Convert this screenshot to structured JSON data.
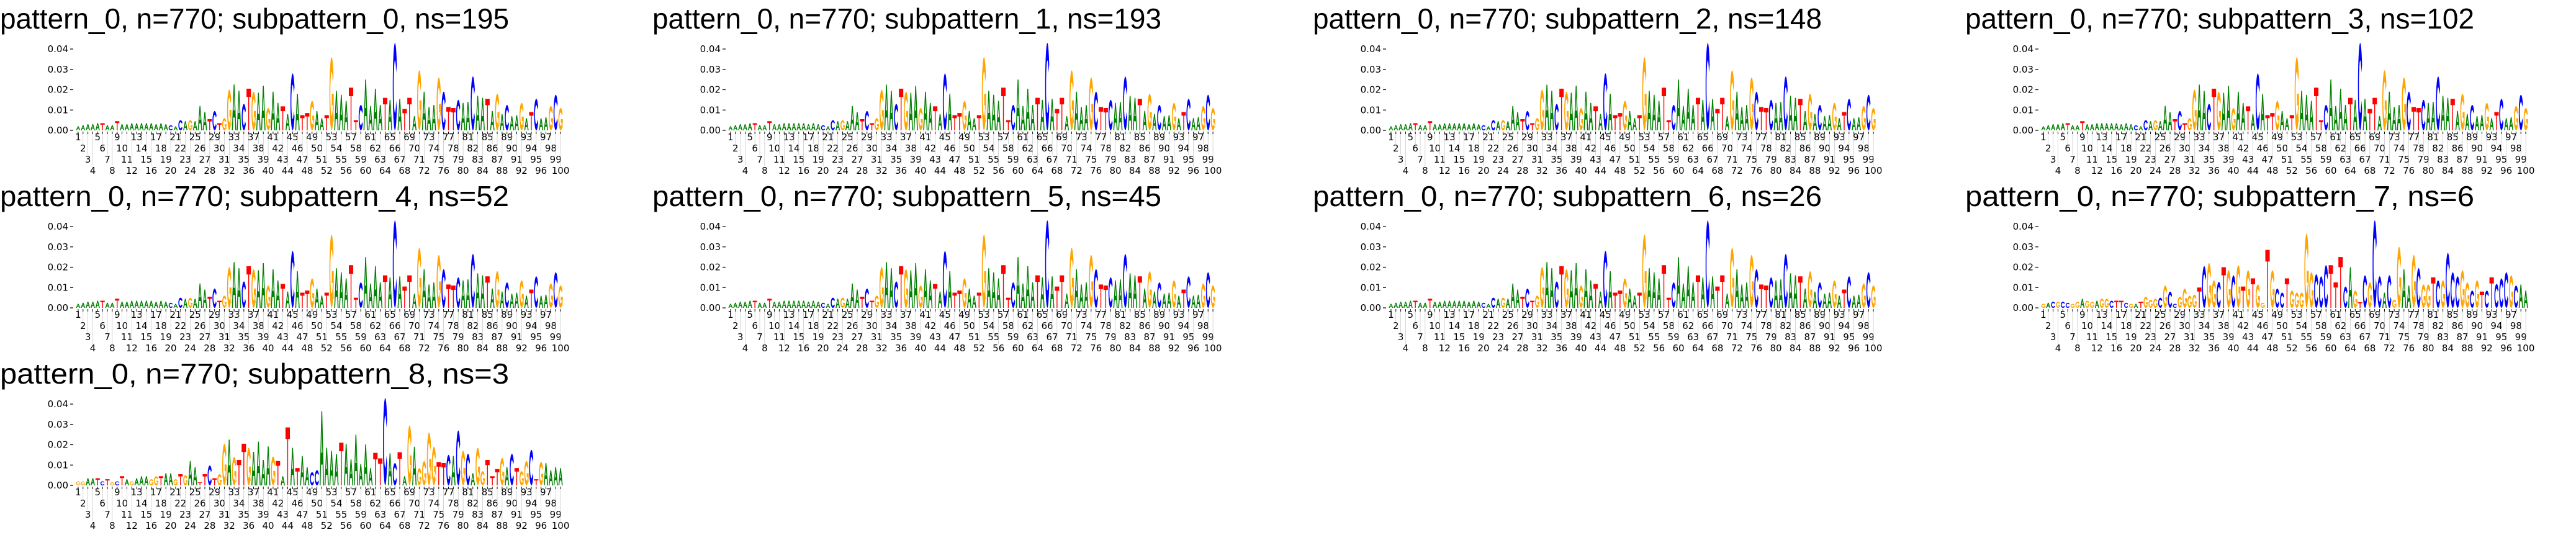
{
  "colors": {
    "A": "#008000",
    "C": "#0000ff",
    "G": "#ffa500",
    "T": "#ff0000"
  },
  "x_tick_labels": [
    1,
    2,
    3,
    4,
    5,
    6,
    7,
    8,
    9,
    10,
    11,
    12,
    13,
    14,
    15,
    16,
    17,
    18,
    19,
    20,
    21,
    22,
    23,
    24,
    25,
    26,
    27,
    28,
    29,
    30,
    31,
    32,
    33,
    34,
    35,
    36,
    37,
    38,
    39,
    40,
    41,
    42,
    43,
    44,
    45,
    46,
    47,
    48,
    49,
    50,
    51,
    52,
    53,
    54,
    55,
    56,
    57,
    58,
    59,
    60,
    61,
    62,
    63,
    64,
    65,
    66,
    67,
    68,
    69,
    70,
    71,
    72,
    73,
    74,
    75,
    76,
    77,
    78,
    79,
    80,
    81,
    82,
    83,
    84,
    85,
    86,
    87,
    88,
    89,
    90,
    91,
    92,
    93,
    94,
    95,
    96,
    97,
    98,
    99,
    100
  ],
  "chart_data": [
    {
      "type": "sequence-logo",
      "title": "pattern_0, n=770; subpattern_0, ns=195",
      "ylim": [
        0,
        0.045
      ],
      "yticks": [
        "0.00",
        "0.01",
        "0.02",
        "0.03",
        "0.04"
      ],
      "letters": "AAAAATAATAAAAAAAAAACACAGAAATCTGGAACTGAAGAATACATTGAATGAAATTCAAAATACATTAGAAAGCTTCAACAATAGACAAGATCAAGCG",
      "heights": [
        0.002,
        0.0025,
        0.003,
        0.003,
        0.0035,
        0.0035,
        0.0025,
        0.0025,
        0.0045,
        0.003,
        0.003,
        0.0035,
        0.0035,
        0.0035,
        0.0035,
        0.0035,
        0.003,
        0.0035,
        0.003,
        0.0025,
        0.002,
        0.005,
        0.0045,
        0.005,
        0.0045,
        0.012,
        0.009,
        0.0055,
        0.0095,
        0.0035,
        0.006,
        0.02,
        0.0225,
        0.0195,
        0.013,
        0.0205,
        0.019,
        0.0185,
        0.022,
        0.011,
        0.019,
        0.0135,
        0.0118,
        0.008,
        0.028,
        0.018,
        0.0075,
        0.0085,
        0.0145,
        0.0095,
        0.006,
        0.0075,
        0.036,
        0.0195,
        0.0175,
        0.0145,
        0.021,
        0.005,
        0.0125,
        0.025,
        0.012,
        0.0205,
        0.0125,
        0.016,
        0.015,
        0.043,
        0.0155,
        0.0105,
        0.016,
        0.007,
        0.0295,
        0.019,
        0.0115,
        0.0125,
        0.026,
        0.019,
        0.0115,
        0.011,
        0.015,
        0.0135,
        0.014,
        0.0265,
        0.017,
        0.016,
        0.0155,
        0.0095,
        0.018,
        0.008,
        0.0125,
        0.007,
        0.0075,
        0.0135,
        0.006,
        0.009,
        0.0155,
        0.006,
        0.0065,
        0.012,
        0.0175,
        0.011
      ]
    },
    {
      "type": "sequence-logo",
      "title": "pattern_0, n=770; subpattern_1, ns=193",
      "ylim": [
        0,
        0.045
      ],
      "yticks": [
        "0.00",
        "0.01",
        "0.02",
        "0.03",
        "0.04"
      ],
      "letters": "AAAAATAATAAAAAAAAAACACAGAAATCTGGAACTGAAGAATACATTGAATGAAATTCAAAATACATTAGAAAGCTTCAACAATAGACAAGATCAAGCG",
      "heights": [
        0.002,
        0.0025,
        0.003,
        0.003,
        0.0035,
        0.0035,
        0.0025,
        0.0025,
        0.0045,
        0.003,
        0.003,
        0.0035,
        0.0035,
        0.0035,
        0.0035,
        0.0035,
        0.003,
        0.0035,
        0.003,
        0.0025,
        0.002,
        0.005,
        0.0045,
        0.005,
        0.0045,
        0.012,
        0.009,
        0.0055,
        0.0095,
        0.0035,
        0.006,
        0.02,
        0.0225,
        0.0195,
        0.013,
        0.0205,
        0.019,
        0.0185,
        0.022,
        0.011,
        0.019,
        0.0135,
        0.0118,
        0.008,
        0.028,
        0.018,
        0.0075,
        0.0085,
        0.0145,
        0.0095,
        0.006,
        0.0075,
        0.036,
        0.0195,
        0.0175,
        0.0145,
        0.021,
        0.005,
        0.0125,
        0.025,
        0.012,
        0.0205,
        0.0125,
        0.016,
        0.015,
        0.043,
        0.0155,
        0.0105,
        0.016,
        0.007,
        0.0295,
        0.019,
        0.0115,
        0.0125,
        0.026,
        0.019,
        0.0115,
        0.011,
        0.015,
        0.0135,
        0.014,
        0.0265,
        0.017,
        0.016,
        0.0155,
        0.0095,
        0.018,
        0.008,
        0.0125,
        0.007,
        0.0075,
        0.0135,
        0.006,
        0.009,
        0.0155,
        0.006,
        0.0065,
        0.012,
        0.0175,
        0.011
      ]
    },
    {
      "type": "sequence-logo",
      "title": "pattern_0, n=770; subpattern_2, ns=148",
      "ylim": [
        0,
        0.045
      ],
      "yticks": [
        "0.00",
        "0.01",
        "0.02",
        "0.03",
        "0.04"
      ],
      "letters": "AAAAATAATAAAAAAAAAACACAGAAATCTGGAACTGAAGAATACATTGAATGAAATTCAAAATACATTAGAAAGCTTCAACAATAGACAAGATCAAGCG",
      "heights": [
        0.002,
        0.0025,
        0.003,
        0.003,
        0.0035,
        0.0035,
        0.0025,
        0.0025,
        0.0045,
        0.003,
        0.003,
        0.0035,
        0.0035,
        0.0035,
        0.0035,
        0.0035,
        0.003,
        0.0035,
        0.003,
        0.0025,
        0.002,
        0.005,
        0.0045,
        0.005,
        0.0045,
        0.012,
        0.009,
        0.0055,
        0.0095,
        0.0035,
        0.006,
        0.02,
        0.0225,
        0.0195,
        0.013,
        0.0205,
        0.019,
        0.0185,
        0.022,
        0.011,
        0.019,
        0.0135,
        0.0118,
        0.008,
        0.028,
        0.018,
        0.0075,
        0.0085,
        0.0145,
        0.0095,
        0.006,
        0.0075,
        0.036,
        0.0195,
        0.0175,
        0.0145,
        0.021,
        0.005,
        0.0125,
        0.025,
        0.012,
        0.0205,
        0.0125,
        0.016,
        0.015,
        0.043,
        0.0155,
        0.0105,
        0.016,
        0.007,
        0.0295,
        0.019,
        0.0115,
        0.0125,
        0.026,
        0.019,
        0.0115,
        0.011,
        0.015,
        0.0135,
        0.014,
        0.0265,
        0.017,
        0.016,
        0.0155,
        0.0095,
        0.018,
        0.008,
        0.0125,
        0.007,
        0.0075,
        0.0135,
        0.006,
        0.009,
        0.0155,
        0.006,
        0.0065,
        0.012,
        0.0175,
        0.011
      ]
    },
    {
      "type": "sequence-logo",
      "title": "pattern_0, n=770; subpattern_3, ns=102",
      "ylim": [
        0,
        0.045
      ],
      "yticks": [
        "0.00",
        "0.01",
        "0.02",
        "0.03",
        "0.04"
      ],
      "letters": "AAAAATAATAAAAAAAAAACACAGAAATCTGGAACTGAAGAATACATTGAATGAAATTCAAAATACATTAGAAAGCTTCAACAATAGACAAGATCAAGCG",
      "heights": [
        0.002,
        0.0025,
        0.003,
        0.003,
        0.0035,
        0.0035,
        0.0025,
        0.0025,
        0.0045,
        0.003,
        0.003,
        0.0035,
        0.0035,
        0.0035,
        0.0035,
        0.0035,
        0.003,
        0.0035,
        0.003,
        0.0025,
        0.002,
        0.005,
        0.0045,
        0.005,
        0.0045,
        0.012,
        0.009,
        0.0055,
        0.0095,
        0.0035,
        0.006,
        0.02,
        0.0225,
        0.0195,
        0.013,
        0.0205,
        0.019,
        0.0185,
        0.022,
        0.011,
        0.019,
        0.0135,
        0.0118,
        0.008,
        0.028,
        0.018,
        0.0075,
        0.0085,
        0.0145,
        0.0095,
        0.006,
        0.0075,
        0.036,
        0.0195,
        0.0175,
        0.0145,
        0.021,
        0.005,
        0.0125,
        0.025,
        0.012,
        0.0205,
        0.0125,
        0.016,
        0.015,
        0.043,
        0.0155,
        0.0105,
        0.016,
        0.007,
        0.0295,
        0.019,
        0.0115,
        0.0125,
        0.026,
        0.019,
        0.0115,
        0.011,
        0.015,
        0.0135,
        0.014,
        0.0265,
        0.017,
        0.016,
        0.0155,
        0.0095,
        0.018,
        0.008,
        0.0125,
        0.007,
        0.0075,
        0.0135,
        0.006,
        0.009,
        0.0155,
        0.006,
        0.0065,
        0.012,
        0.0175,
        0.011
      ]
    },
    {
      "type": "sequence-logo",
      "title": "pattern_0, n=770; subpattern_4, ns=52",
      "ylim": [
        0,
        0.045
      ],
      "yticks": [
        "0.00",
        "0.01",
        "0.02",
        "0.03",
        "0.04"
      ],
      "letters": "AAAAATAATAAAAAAAAAACACAGAAATCTGGAACTGAAGAATACATTGAATGAAATTCAAAATACATTAGAAAGCTTCAACAATAGACAAGATCAAGCG",
      "heights": [
        0.002,
        0.0025,
        0.003,
        0.003,
        0.0035,
        0.0035,
        0.0025,
        0.0025,
        0.0045,
        0.003,
        0.003,
        0.0035,
        0.0035,
        0.0035,
        0.0035,
        0.0035,
        0.003,
        0.0035,
        0.003,
        0.0025,
        0.002,
        0.005,
        0.0045,
        0.005,
        0.0045,
        0.012,
        0.009,
        0.0055,
        0.0095,
        0.0035,
        0.006,
        0.02,
        0.0225,
        0.0195,
        0.013,
        0.0205,
        0.019,
        0.0185,
        0.022,
        0.011,
        0.019,
        0.0135,
        0.0118,
        0.008,
        0.028,
        0.018,
        0.0075,
        0.0085,
        0.0145,
        0.0095,
        0.006,
        0.0075,
        0.036,
        0.0195,
        0.0175,
        0.0145,
        0.021,
        0.005,
        0.0125,
        0.025,
        0.012,
        0.0205,
        0.0125,
        0.016,
        0.015,
        0.043,
        0.0155,
        0.0105,
        0.016,
        0.007,
        0.0295,
        0.019,
        0.0115,
        0.0125,
        0.026,
        0.019,
        0.0115,
        0.011,
        0.015,
        0.0135,
        0.014,
        0.0265,
        0.017,
        0.016,
        0.0155,
        0.0095,
        0.018,
        0.008,
        0.0125,
        0.007,
        0.0075,
        0.0135,
        0.006,
        0.009,
        0.0155,
        0.006,
        0.0065,
        0.012,
        0.0175,
        0.011
      ]
    },
    {
      "type": "sequence-logo",
      "title": "pattern_0, n=770; subpattern_5, ns=45",
      "ylim": [
        0,
        0.045
      ],
      "yticks": [
        "0.00",
        "0.01",
        "0.02",
        "0.03",
        "0.04"
      ],
      "letters": "AAAAATAATAAAAAAAAAACACAGAAATCTGGAACTGAAGAATACATTGAATGAAATTCAAAATACATTAGAAAGCTTCAACAATAGACAAGATCAAGCG",
      "heights": [
        0.002,
        0.0025,
        0.003,
        0.003,
        0.0035,
        0.0035,
        0.0025,
        0.0025,
        0.0045,
        0.003,
        0.003,
        0.0035,
        0.0035,
        0.0035,
        0.0035,
        0.0035,
        0.003,
        0.0035,
        0.003,
        0.0025,
        0.002,
        0.005,
        0.0045,
        0.005,
        0.0045,
        0.012,
        0.009,
        0.0055,
        0.0095,
        0.0035,
        0.006,
        0.02,
        0.0225,
        0.0195,
        0.013,
        0.0205,
        0.019,
        0.0185,
        0.022,
        0.011,
        0.019,
        0.0135,
        0.0118,
        0.008,
        0.028,
        0.018,
        0.0075,
        0.0085,
        0.0145,
        0.0095,
        0.006,
        0.0075,
        0.036,
        0.0195,
        0.0175,
        0.0145,
        0.021,
        0.005,
        0.0125,
        0.025,
        0.012,
        0.0205,
        0.0125,
        0.016,
        0.015,
        0.043,
        0.0155,
        0.0105,
        0.016,
        0.007,
        0.0295,
        0.019,
        0.0115,
        0.0125,
        0.026,
        0.019,
        0.0115,
        0.011,
        0.015,
        0.0135,
        0.014,
        0.0265,
        0.017,
        0.016,
        0.0155,
        0.0095,
        0.018,
        0.008,
        0.0125,
        0.007,
        0.0075,
        0.0135,
        0.006,
        0.009,
        0.0155,
        0.006,
        0.0065,
        0.012,
        0.0175,
        0.011
      ]
    },
    {
      "type": "sequence-logo",
      "title": "pattern_0, n=770; subpattern_6, ns=26",
      "ylim": [
        0,
        0.045
      ],
      "yticks": [
        "0.00",
        "0.01",
        "0.02",
        "0.03",
        "0.04"
      ],
      "letters": "AAAAATAATAAAAAAAAAACACAGAAATCTGGAACTGAAGAATACATTGAATGAAATTCAAAATACATTAGAAAGCTTCAACAATAGACAAGATCAAGCG",
      "heights": [
        0.002,
        0.0025,
        0.003,
        0.003,
        0.0035,
        0.0035,
        0.0025,
        0.0025,
        0.0045,
        0.003,
        0.003,
        0.0035,
        0.0035,
        0.0035,
        0.0035,
        0.0035,
        0.003,
        0.0035,
        0.003,
        0.0025,
        0.002,
        0.005,
        0.0045,
        0.005,
        0.0045,
        0.012,
        0.009,
        0.0055,
        0.0095,
        0.0035,
        0.006,
        0.02,
        0.0225,
        0.0195,
        0.013,
        0.0205,
        0.019,
        0.0185,
        0.022,
        0.011,
        0.019,
        0.0135,
        0.0118,
        0.008,
        0.028,
        0.018,
        0.0075,
        0.0085,
        0.0145,
        0.0095,
        0.006,
        0.0075,
        0.036,
        0.0195,
        0.0175,
        0.0145,
        0.021,
        0.005,
        0.0125,
        0.025,
        0.012,
        0.0205,
        0.0125,
        0.016,
        0.015,
        0.043,
        0.0155,
        0.0105,
        0.016,
        0.007,
        0.0295,
        0.019,
        0.0115,
        0.0125,
        0.026,
        0.019,
        0.0115,
        0.011,
        0.015,
        0.0135,
        0.014,
        0.0265,
        0.017,
        0.016,
        0.0155,
        0.0095,
        0.018,
        0.008,
        0.0125,
        0.007,
        0.0075,
        0.0135,
        0.006,
        0.009,
        0.0155,
        0.006,
        0.0065,
        0.012,
        0.0175,
        0.011
      ]
    },
    {
      "type": "sequence-logo",
      "title": "pattern_0, n=770; subpattern_7, ns=6",
      "ylim": [
        0,
        0.045
      ],
      "yticks": [
        "0.00",
        "0.01",
        "0.02",
        "0.03",
        "0.04"
      ],
      "letters": "GACGCCGGAGGAGGCTTCGATGGGCGCCGGGGTCGGCTGCGTGTGGTGCCTGGGGGCCCTTTCAGTCGCCACGGAAGCGGTCGCCCGGCGTCTCCCGCAA",
      "heights": [
        0.002,
        0.0025,
        0.003,
        0.003,
        0.003,
        0.0025,
        0.002,
        0.003,
        0.0045,
        0.0035,
        0.003,
        0.0035,
        0.0045,
        0.0045,
        0.0035,
        0.0035,
        0.0035,
        0.0025,
        0.002,
        0.002,
        0.003,
        0.0055,
        0.004,
        0.0045,
        0.005,
        0.011,
        0.008,
        0.002,
        0.0055,
        0.0095,
        0.006,
        0.0065,
        0.01,
        0.0205,
        0.022,
        0.0135,
        0.0128,
        0.02,
        0.0185,
        0.016,
        0.021,
        0.0105,
        0.0185,
        0.0145,
        0.0115,
        0.0025,
        0.0285,
        0.0185,
        0.0095,
        0.0075,
        0.0145,
        0.0085,
        0.0075,
        0.0075,
        0.0365,
        0.0175,
        0.0165,
        0.0155,
        0.021,
        0.021,
        0.0125,
        0.025,
        0.0105,
        0.02,
        0.0085,
        0.0028,
        0.016,
        0.0125,
        0.043,
        0.0155,
        0.0075,
        0.016,
        0.004,
        0.03,
        0.019,
        0.011,
        0.026,
        0.0195,
        0.0115,
        0.0115,
        0.015,
        0.0135,
        0.0135,
        0.027,
        0.0175,
        0.0155,
        0.0185,
        0.0125,
        0.0085,
        0.0135,
        0.008,
        0.0085,
        0.015,
        0.0118,
        0.0145,
        0.0175,
        0.016,
        0.011,
        0.0115,
        0.0085
      ]
    },
    {
      "type": "sequence-logo",
      "title": "pattern_0, n=770; subpattern_8, ns=3",
      "ylim": [
        0,
        0.045
      ],
      "yticks": [
        "0.00",
        "0.01",
        "0.02",
        "0.03",
        "0.04"
      ],
      "letters": "GGAATCTGCTAGAAAGGTAAGTGAATTCTGGAGTTGAAAAGTATATAACCAAAATAAAAAATTCACTAGAGGGGTTCACGCAGGTTTGACTGGCTGAAAA",
      "heights": [
        0.002,
        0.002,
        0.0035,
        0.0035,
        0.0035,
        0.002,
        0.003,
        0.0015,
        0.002,
        0.0045,
        0.003,
        0.002,
        0.0035,
        0.0045,
        0.0045,
        0.003,
        0.0045,
        0.0045,
        0.006,
        0.006,
        0.003,
        0.0055,
        0.005,
        0.012,
        0.009,
        0.0015,
        0.0055,
        0.0098,
        0.0035,
        0.0055,
        0.0205,
        0.0225,
        0.014,
        0.0125,
        0.0205,
        0.0185,
        0.0165,
        0.0215,
        0.0125,
        0.0192,
        0.0142,
        0.012,
        0.0045,
        0.0285,
        0.0185,
        0.0085,
        0.0145,
        0.009,
        0.0065,
        0.0075,
        0.0365,
        0.0185,
        0.017,
        0.0155,
        0.021,
        0.0205,
        0.0128,
        0.025,
        0.0105,
        0.0202,
        0.0085,
        0.016,
        0.0133,
        0.043,
        0.0158,
        0.011,
        0.0163,
        0.0045,
        0.0295,
        0.019,
        0.0085,
        0.012,
        0.026,
        0.019,
        0.0115,
        0.011,
        0.015,
        0.0145,
        0.027,
        0.017,
        0.0155,
        0.006,
        0.0185,
        0.007,
        0.0125,
        0.0045,
        0.008,
        0.0135,
        0.009,
        0.0155,
        0.0085,
        0.007,
        0.012,
        0.0175,
        0.003,
        0.0115,
        0.011,
        0.0075,
        0.009,
        0.0085
      ]
    }
  ]
}
